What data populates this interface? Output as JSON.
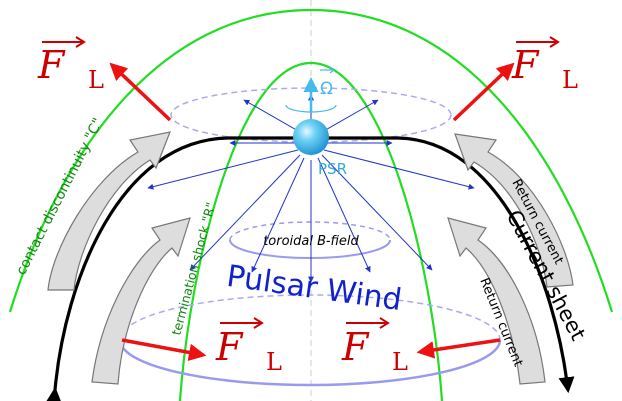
{
  "labels": {
    "force_symbol": "F",
    "force_subscript": "L",
    "omega": "Ω",
    "psr": "PSR",
    "toroidal": "toroidal B-field",
    "pulsar_wind": "Pulsar Wind",
    "current_sheet": "Current sheet",
    "return_current": "Return current",
    "contact_discontinuity": "contact discontinuity \"C\"",
    "termination_shock": "termination shock \"R\""
  },
  "colors": {
    "contact_discontinuity": "#22dd22",
    "termination_shock": "#22dd22",
    "current_sheet": "#000000",
    "force_arrow": "#ee1111",
    "force_text": "#cc0000",
    "wind_rays": "#2233cc",
    "pulsar_wind_text": "#1122cc",
    "rings": "#9999ee",
    "psr_text": "#33aadd",
    "return_arrow_fill": "#dddddd",
    "return_arrow_stroke": "#777777"
  },
  "icons": {
    "pulsar": "blue-sphere",
    "omega": "rotation-vector-arrow"
  }
}
